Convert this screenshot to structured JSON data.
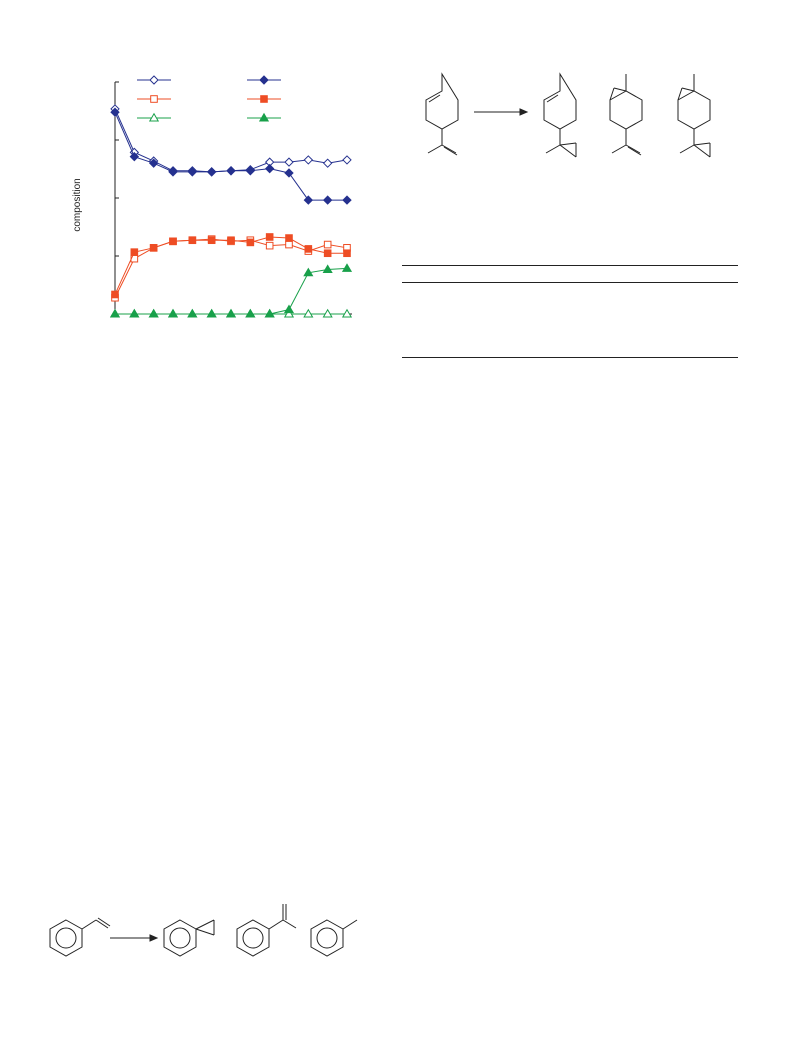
{
  "chart_data": {
    "type": "line",
    "ylabel": "composition",
    "xlabel": "",
    "title": "",
    "x": [
      1,
      2,
      3,
      4,
      5,
      6,
      7,
      8,
      9,
      10,
      11,
      12,
      13
    ],
    "ylim": [
      0,
      1
    ],
    "grid": false,
    "legend": "top",
    "series": [
      {
        "color": "#25318f",
        "marker": "diamond",
        "filled": false,
        "values": [
          0.945,
          0.745,
          0.705,
          0.66,
          0.66,
          0.655,
          0.66,
          0.665,
          0.7,
          0.7,
          0.71,
          0.695,
          0.71
        ]
      },
      {
        "color": "#25318f",
        "marker": "diamond",
        "filled": true,
        "values": [
          0.93,
          0.725,
          0.695,
          0.655,
          0.655,
          0.655,
          0.66,
          0.66,
          0.67,
          0.65,
          0.525,
          0.525,
          0.525
        ]
      },
      {
        "color": "#ee4d24",
        "marker": "square",
        "filled": false,
        "values": [
          0.075,
          0.255,
          0.305,
          0.335,
          0.34,
          0.345,
          0.335,
          0.34,
          0.315,
          0.32,
          0.29,
          0.32,
          0.305
        ]
      },
      {
        "color": "#ee4d24",
        "marker": "square",
        "filled": true,
        "values": [
          0.09,
          0.285,
          0.305,
          0.335,
          0.34,
          0.34,
          0.34,
          0.33,
          0.355,
          0.35,
          0.3,
          0.28,
          0.28
        ]
      },
      {
        "color": "#18a04a",
        "marker": "triangle",
        "filled": false,
        "values": [
          0.0,
          0.0,
          0.0,
          0.0,
          0.0,
          0.0,
          0.0,
          0.0,
          0.0,
          0.0,
          0.0,
          0.0,
          0.0
        ]
      },
      {
        "color": "#18a04a",
        "marker": "triangle",
        "filled": true,
        "values": [
          0.0,
          0.0,
          0.0,
          0.0,
          0.0,
          0.0,
          0.0,
          0.0,
          0.0,
          0.02,
          0.19,
          0.205,
          0.21
        ]
      }
    ]
  }
}
